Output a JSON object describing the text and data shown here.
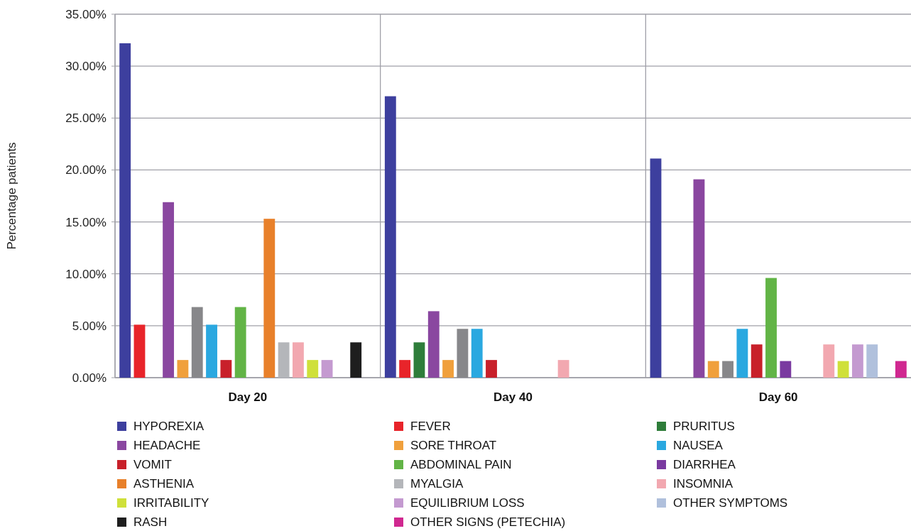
{
  "chart_data": {
    "type": "bar",
    "ylabel": "Percentage patients",
    "categories": [
      "Day 20",
      "Day 40",
      "Day 60"
    ],
    "ylim": [
      0,
      35
    ],
    "yticks": [
      {
        "value": 0,
        "label": "0.00%"
      },
      {
        "value": 5,
        "label": "5.00%"
      },
      {
        "value": 10,
        "label": "10.00%"
      },
      {
        "value": 15,
        "label": "15.00%"
      },
      {
        "value": 20,
        "label": "20.00%"
      },
      {
        "value": 25,
        "label": "25.00%"
      },
      {
        "value": 30,
        "label": "30.00%"
      },
      {
        "value": 35,
        "label": "35.00%"
      }
    ],
    "grid": true,
    "legend": "bottom",
    "series": [
      {
        "name": "HYPOREXIA",
        "color": "#3d3f9e",
        "values": [
          32.2,
          27.1,
          21.1
        ]
      },
      {
        "name": "FEVER",
        "color": "#e8242a",
        "values": [
          5.1,
          1.7,
          0
        ]
      },
      {
        "name": "PRURITUS",
        "color": "#2e7d3a",
        "values": [
          0,
          3.4,
          0
        ]
      },
      {
        "name": "HEADACHE",
        "color": "#8a47a0",
        "values": [
          16.9,
          6.4,
          19.1
        ]
      },
      {
        "name": "SORE THROAT",
        "color": "#f0a03c",
        "values": [
          1.7,
          1.7,
          1.6
        ]
      },
      {
        "color": "#87878a",
        "values": [
          6.8,
          4.7,
          1.6
        ]
      },
      {
        "name": "NAUSEA",
        "color": "#2aa8e0",
        "values": [
          5.1,
          4.7,
          4.7
        ]
      },
      {
        "name": "VOMIT",
        "color": "#c8202a",
        "values": [
          1.7,
          1.7,
          3.2
        ]
      },
      {
        "name": "ABDOMINAL PAIN",
        "color": "#62b446",
        "values": [
          6.8,
          0,
          9.6
        ]
      },
      {
        "name": "DIARRHEA",
        "color": "#7a3aa0",
        "values": [
          0,
          0,
          1.6
        ]
      },
      {
        "name": "ASTHENIA",
        "color": "#e8802a",
        "values": [
          15.3,
          0,
          0
        ]
      },
      {
        "name": "MYALGIA",
        "color": "#b4b6ba",
        "values": [
          3.4,
          0,
          0
        ]
      },
      {
        "name": "INSOMNIA",
        "color": "#f2a8b0",
        "values": [
          3.4,
          1.7,
          3.2
        ]
      },
      {
        "name": "IRRITABILITY",
        "color": "#cfe03a",
        "values": [
          1.7,
          0,
          1.6
        ]
      },
      {
        "name": "EQUILIBRIUM LOSS",
        "color": "#c49ad0",
        "values": [
          1.7,
          0,
          3.2
        ]
      },
      {
        "name": "OTHER SYMPTOMS",
        "color": "#b0c0dc",
        "values": [
          0,
          0,
          3.2
        ]
      },
      {
        "name": "RASH",
        "color": "#1e1e1e",
        "values": [
          3.4,
          0,
          0
        ]
      },
      {
        "name": "OTHER SIGNS (PETECHIA)",
        "color": "#d02890",
        "values": [
          0,
          0,
          1.6
        ]
      }
    ]
  }
}
